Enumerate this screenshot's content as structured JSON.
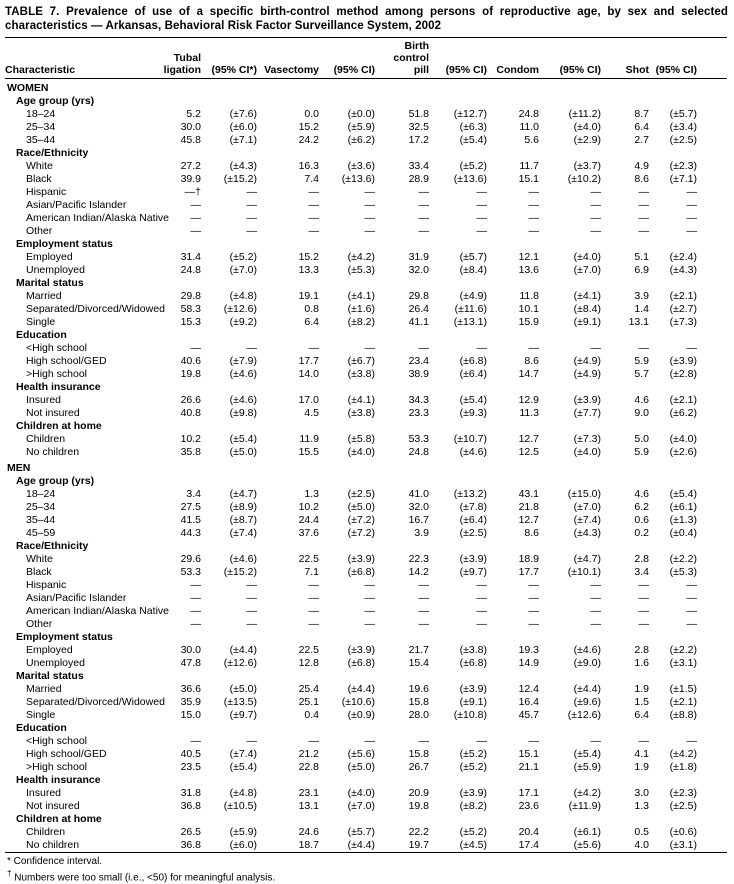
{
  "title": "TABLE 7. Prevalence of use of a specific birth-control method among persons of reproductive age, by sex and selected characteristics — Arkansas, Behavioral Risk Factor Surveillance System, 2002",
  "table": {
    "columns": [
      "Characteristic",
      "Tubal\nligation",
      "(95% CI*)",
      "Vasectomy",
      "(95% CI)",
      "Birth\ncontrol\npill",
      "(95% CI)",
      "Condom",
      "(95% CI)",
      "Shot",
      "(95% CI)"
    ],
    "sections": [
      {
        "name": "WOMEN",
        "groups": [
          {
            "label": "Age group (yrs)",
            "rows": [
              {
                "label": "18–24",
                "values": [
                  "5.2",
                  "(±7.6)",
                  "0.0",
                  "(±0.0)",
                  "51.8",
                  "(±12.7)",
                  "24.8",
                  "(±11.2)",
                  "8.7",
                  "(±5.7)"
                ]
              },
              {
                "label": "25–34",
                "values": [
                  "30.0",
                  "(±6.0)",
                  "15.2",
                  "(±5.9)",
                  "32.5",
                  "(±6.3)",
                  "11.0",
                  "(±4.0)",
                  "6.4",
                  "(±3.4)"
                ]
              },
              {
                "label": "35–44",
                "values": [
                  "45.8",
                  "(±7.1)",
                  "24.2",
                  "(±6.2)",
                  "17.2",
                  "(±5.4)",
                  "5.6",
                  "(±2.9)",
                  "2.7",
                  "(±2.5)"
                ]
              }
            ]
          },
          {
            "label": "Race/Ethnicity",
            "rows": [
              {
                "label": "White",
                "values": [
                  "27.2",
                  "(±4.3)",
                  "16.3",
                  "(±3.6)",
                  "33.4",
                  "(±5.2)",
                  "11.7",
                  "(±3.7)",
                  "4.9",
                  "(±2.3)"
                ]
              },
              {
                "label": "Black",
                "values": [
                  "39.9",
                  "(±15.2)",
                  "7.4",
                  "(±13.6)",
                  "28.9",
                  "(±13.6)",
                  "15.1",
                  "(±10.2)",
                  "8.6",
                  "(±7.1)"
                ]
              },
              {
                "label": "Hispanic",
                "values": [
                  "—†",
                  "—",
                  "—",
                  "—",
                  "—",
                  "—",
                  "—",
                  "—",
                  "—",
                  "—"
                ]
              },
              {
                "label": "Asian/Pacific Islander",
                "values": [
                  "—",
                  "—",
                  "—",
                  "—",
                  "—",
                  "—",
                  "—",
                  "—",
                  "—",
                  "—"
                ]
              },
              {
                "label": "American Indian/Alaska Native",
                "values": [
                  "—",
                  "—",
                  "—",
                  "—",
                  "—",
                  "—",
                  "—",
                  "—",
                  "—",
                  "—"
                ]
              },
              {
                "label": "Other",
                "values": [
                  "—",
                  "—",
                  "—",
                  "—",
                  "—",
                  "—",
                  "—",
                  "—",
                  "—",
                  "—"
                ]
              }
            ]
          },
          {
            "label": "Employment status",
            "rows": [
              {
                "label": "Employed",
                "values": [
                  "31.4",
                  "(±5.2)",
                  "15.2",
                  "(±4.2)",
                  "31.9",
                  "(±5.7)",
                  "12.1",
                  "(±4.0)",
                  "5.1",
                  "(±2.4)"
                ]
              },
              {
                "label": "Unemployed",
                "values": [
                  "24.8",
                  "(±7.0)",
                  "13.3",
                  "(±5.3)",
                  "32.0",
                  "(±8.4)",
                  "13.6",
                  "(±7.0)",
                  "6.9",
                  "(±4.3)"
                ]
              }
            ]
          },
          {
            "label": "Marital status",
            "rows": [
              {
                "label": "Married",
                "values": [
                  "29.8",
                  "(±4.8)",
                  "19.1",
                  "(±4.1)",
                  "29.8",
                  "(±4.9)",
                  "11.8",
                  "(±4.1)",
                  "3.9",
                  "(±2.1)"
                ]
              },
              {
                "label": "Separated/Divorced/Widowed",
                "values": [
                  "58.3",
                  "(±12.6)",
                  "0.8",
                  "(±1.6)",
                  "26.4",
                  "(±11.6)",
                  "10.1",
                  "(±8.4)",
                  "1.4",
                  "(±2.7)"
                ]
              },
              {
                "label": "Single",
                "values": [
                  "15.3",
                  "(±9.2)",
                  "6.4",
                  "(±8.2)",
                  "41.1",
                  "(±13.1)",
                  "15.9",
                  "(±9.1)",
                  "13.1",
                  "(±7.3)"
                ]
              }
            ]
          },
          {
            "label": "Education",
            "rows": [
              {
                "label": "<High school",
                "values": [
                  "—",
                  "—",
                  "—",
                  "—",
                  "—",
                  "—",
                  "—",
                  "—",
                  "—",
                  "—"
                ]
              },
              {
                "label": "High school/GED",
                "values": [
                  "40.6",
                  "(±7.9)",
                  "17.7",
                  "(±6.7)",
                  "23.4",
                  "(±6.8)",
                  "8.6",
                  "(±4.9)",
                  "5.9",
                  "(±3.9)"
                ]
              },
              {
                "label": ">High school",
                "values": [
                  "19.8",
                  "(±4.6)",
                  "14.0",
                  "(±3.8)",
                  "38.9",
                  "(±6.4)",
                  "14.7",
                  "(±4.9)",
                  "5.7",
                  "(±2.8)"
                ]
              }
            ]
          },
          {
            "label": "Health insurance",
            "rows": [
              {
                "label": "Insured",
                "values": [
                  "26.6",
                  "(±4.6)",
                  "17.0",
                  "(±4.1)",
                  "34.3",
                  "(±5.4)",
                  "12.9",
                  "(±3.9)",
                  "4.6",
                  "(±2.1)"
                ]
              },
              {
                "label": "Not insured",
                "values": [
                  "40.8",
                  "(±9.8)",
                  "4.5",
                  "(±3.8)",
                  "23.3",
                  "(±9.3)",
                  "11.3",
                  "(±7.7)",
                  "9.0",
                  "(±6.2)"
                ]
              }
            ]
          },
          {
            "label": "Children at home",
            "rows": [
              {
                "label": "Children",
                "values": [
                  "10.2",
                  "(±5.4)",
                  "11.9",
                  "(±5.8)",
                  "53.3",
                  "(±10.7)",
                  "12.7",
                  "(±7.3)",
                  "5.0",
                  "(±4.0)"
                ]
              },
              {
                "label": "No children",
                "values": [
                  "35.8",
                  "(±5.0)",
                  "15.5",
                  "(±4.0)",
                  "24.8",
                  "(±4.6)",
                  "12.5",
                  "(±4.0)",
                  "5.9",
                  "(±2.6)"
                ]
              }
            ]
          }
        ]
      },
      {
        "name": "MEN",
        "groups": [
          {
            "label": "Age group (yrs)",
            "rows": [
              {
                "label": "18–24",
                "values": [
                  "3.4",
                  "(±4.7)",
                  "1.3",
                  "(±2.5)",
                  "41.0",
                  "(±13.2)",
                  "43.1",
                  "(±15.0)",
                  "4.6",
                  "(±5.4)"
                ]
              },
              {
                "label": "25–34",
                "values": [
                  "27.5",
                  "(±8.9)",
                  "10.2",
                  "(±5.0)",
                  "32.0",
                  "(±7.8)",
                  "21.8",
                  "(±7.0)",
                  "6.2",
                  "(±6.1)"
                ]
              },
              {
                "label": "35–44",
                "values": [
                  "41.5",
                  "(±8.7)",
                  "24.4",
                  "(±7.2)",
                  "16.7",
                  "(±6.4)",
                  "12.7",
                  "(±7.4)",
                  "0.6",
                  "(±1.3)"
                ]
              },
              {
                "label": "45–59",
                "values": [
                  "44.3",
                  "(±7.4)",
                  "37.6",
                  "(±7.2)",
                  "3.9",
                  "(±2.5)",
                  "8.6",
                  "(±4.3)",
                  "0.2",
                  "(±0.4)"
                ]
              }
            ]
          },
          {
            "label": "Race/Ethnicity",
            "rows": [
              {
                "label": "White",
                "values": [
                  "29.6",
                  "(±4.6)",
                  "22.5",
                  "(±3.9)",
                  "22.3",
                  "(±3.9)",
                  "18.9",
                  "(±4.7)",
                  "2.8",
                  "(±2.2)"
                ]
              },
              {
                "label": "Black",
                "values": [
                  "53.3",
                  "(±15.2)",
                  "7.1",
                  "(±6.8)",
                  "14.2",
                  "(±9.7)",
                  "17.7",
                  "(±10.1)",
                  "3.4",
                  "(±5.3)"
                ]
              },
              {
                "label": "Hispanic",
                "values": [
                  "—",
                  "—",
                  "—",
                  "—",
                  "—",
                  "—",
                  "—",
                  "—",
                  "—",
                  "—"
                ]
              },
              {
                "label": "Asian/Pacific Islander",
                "values": [
                  "—",
                  "—",
                  "—",
                  "—",
                  "—",
                  "—",
                  "—",
                  "—",
                  "—",
                  "—"
                ]
              },
              {
                "label": "American Indian/Alaska Native",
                "values": [
                  "—",
                  "—",
                  "—",
                  "—",
                  "—",
                  "—",
                  "—",
                  "—",
                  "—",
                  "—"
                ]
              },
              {
                "label": "Other",
                "values": [
                  "—",
                  "—",
                  "—",
                  "—",
                  "—",
                  "—",
                  "—",
                  "—",
                  "—",
                  "—"
                ]
              }
            ]
          },
          {
            "label": "Employment status",
            "rows": [
              {
                "label": "Employed",
                "values": [
                  "30.0",
                  "(±4.4)",
                  "22.5",
                  "(±3.9)",
                  "21.7",
                  "(±3.8)",
                  "19.3",
                  "(±4.6)",
                  "2.8",
                  "(±2.2)"
                ]
              },
              {
                "label": "Unemployed",
                "values": [
                  "47.8",
                  "(±12.6)",
                  "12.8",
                  "(±6.8)",
                  "15.4",
                  "(±6.8)",
                  "14.9",
                  "(±9.0)",
                  "1.6",
                  "(±3.1)"
                ]
              }
            ]
          },
          {
            "label": "Marital status",
            "rows": [
              {
                "label": "Married",
                "values": [
                  "36.6",
                  "(±5.0)",
                  "25.4",
                  "(±4.4)",
                  "19.6",
                  "(±3.9)",
                  "12.4",
                  "(±4.4)",
                  "1.9",
                  "(±1.5)"
                ]
              },
              {
                "label": "Separated/Divorced/Widowed",
                "values": [
                  "35.9",
                  "(±13.5)",
                  "25.1",
                  "(±10.6)",
                  "15.8",
                  "(±9.1)",
                  "16.4",
                  "(±9.6)",
                  "1.5",
                  "(±2.1)"
                ]
              },
              {
                "label": "Single",
                "values": [
                  "15.0",
                  "(±9.7)",
                  "0.4",
                  "(±0.9)",
                  "28.0",
                  "(±10.8)",
                  "45.7",
                  "(±12.6)",
                  "6.4",
                  "(±8.8)"
                ]
              }
            ]
          },
          {
            "label": "Education",
            "rows": [
              {
                "label": "<High school",
                "values": [
                  "—",
                  "—",
                  "—",
                  "—",
                  "—",
                  "—",
                  "—",
                  "—",
                  "—",
                  "—"
                ]
              },
              {
                "label": "High school/GED",
                "values": [
                  "40.5",
                  "(±7.4)",
                  "21.2",
                  "(±5.6)",
                  "15.8",
                  "(±5.2)",
                  "15.1",
                  "(±5.4)",
                  "4.1",
                  "(±4.2)"
                ]
              },
              {
                "label": ">High school",
                "values": [
                  "23.5",
                  "(±5.4)",
                  "22.8",
                  "(±5.0)",
                  "26.7",
                  "(±5.2)",
                  "21.1",
                  "(±5.9)",
                  "1.9",
                  "(±1.8)"
                ]
              }
            ]
          },
          {
            "label": "Health insurance",
            "rows": [
              {
                "label": "Insured",
                "values": [
                  "31.8",
                  "(±4.8)",
                  "23.1",
                  "(±4.0)",
                  "20.9",
                  "(±3.9)",
                  "17.1",
                  "(±4.2)",
                  "3.0",
                  "(±2.3)"
                ]
              },
              {
                "label": "Not insured",
                "values": [
                  "36.8",
                  "(±10.5)",
                  "13.1",
                  "(±7.0)",
                  "19.8",
                  "(±8.2)",
                  "23.6",
                  "(±11.9)",
                  "1.3",
                  "(±2.5)"
                ]
              }
            ]
          },
          {
            "label": "Children at home",
            "rows": [
              {
                "label": "Children",
                "values": [
                  "26.5",
                  "(±5.9)",
                  "24.6",
                  "(±5.7)",
                  "22.2",
                  "(±5.2)",
                  "20.4",
                  "(±6.1)",
                  "0.5",
                  "(±0.6)"
                ]
              },
              {
                "label": "No children",
                "values": [
                  "36.8",
                  "(±6.0)",
                  "18.7",
                  "(±4.4)",
                  "19.7",
                  "(±4.5)",
                  "17.4",
                  "(±5.6)",
                  "4.0",
                  "(±3.1)"
                ]
              }
            ]
          }
        ]
      }
    ]
  },
  "footnotes": [
    {
      "marker": "*",
      "text": " Confidence interval."
    },
    {
      "marker": "†",
      "text": " Numbers were too small (i.e., <50) for meaningful analysis."
    }
  ]
}
